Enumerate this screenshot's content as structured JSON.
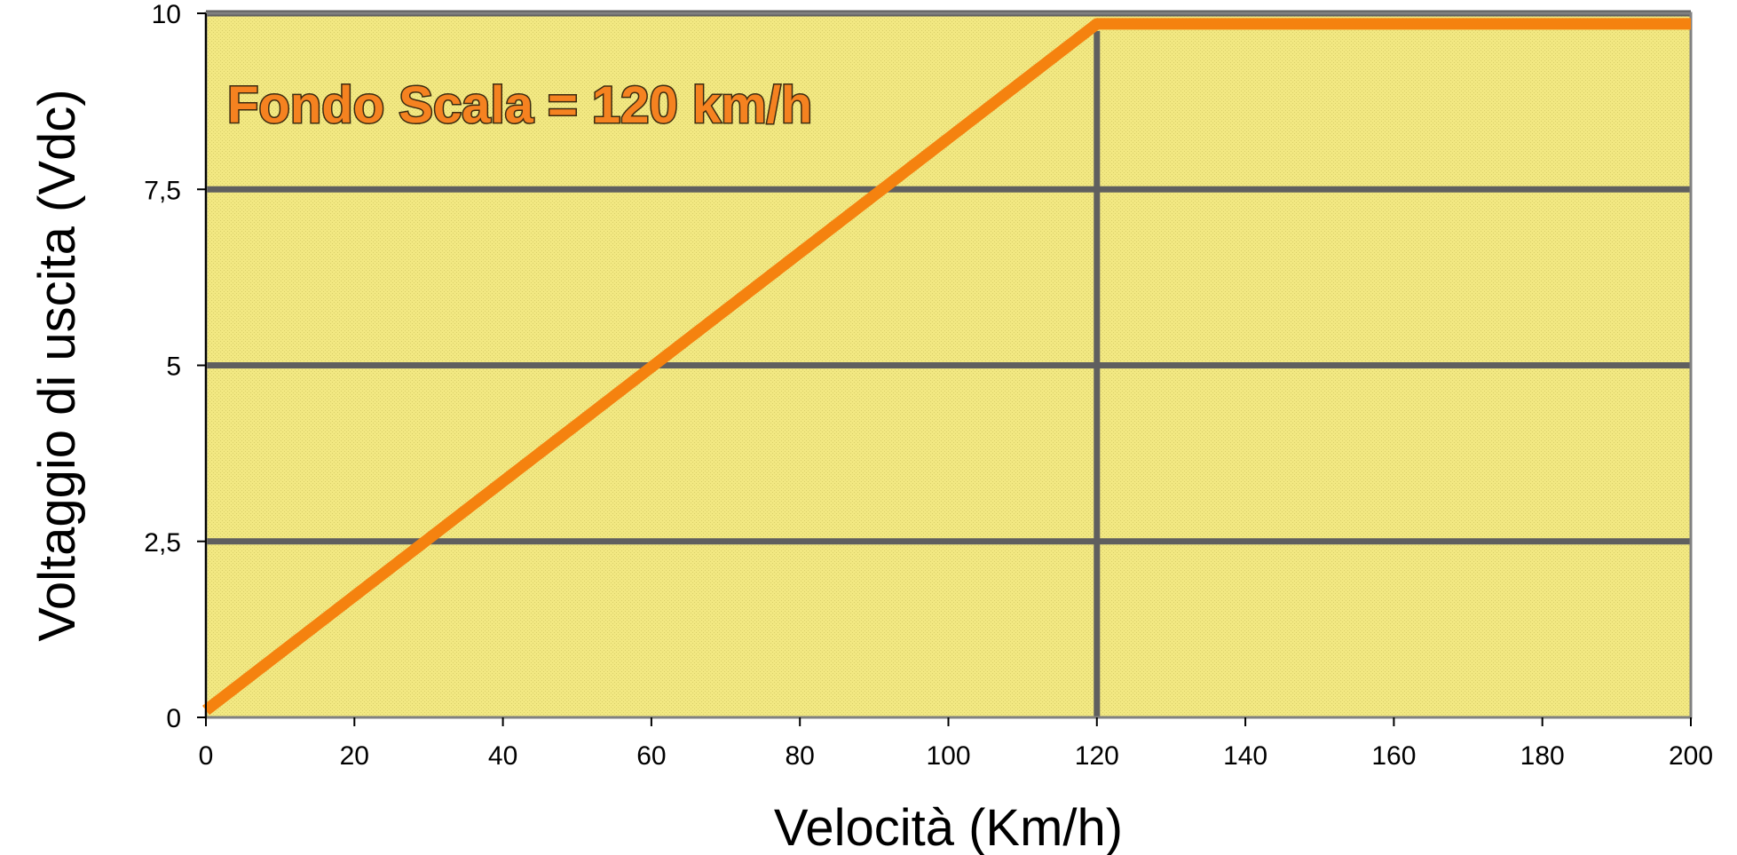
{
  "chart_data": {
    "type": "line",
    "title": "",
    "xlabel": "Velocità (Km/h)",
    "ylabel": "Voltaggio di uscita (Vdc)",
    "xlim": [
      0,
      200
    ],
    "ylim": [
      0,
      10
    ],
    "x_ticks": [
      0,
      20,
      40,
      60,
      80,
      100,
      120,
      140,
      160,
      180,
      200
    ],
    "y_ticks": [
      0,
      2.5,
      5,
      7.5,
      10
    ],
    "x_tick_labels": [
      "0",
      "20",
      "40",
      "60",
      "80",
      "100",
      "120",
      "140",
      "160",
      "180",
      "200"
    ],
    "y_tick_labels": [
      "0",
      "2,5",
      "5",
      "7,5",
      "10"
    ],
    "horizontal_grid": true,
    "vertical_marker_x": 120,
    "background_color": "#f2e882",
    "grid_color": "#5f5f5f",
    "series": [
      {
        "color": "#f5820f",
        "x": [
          0,
          120,
          200
        ],
        "y": [
          0.1,
          9.85,
          9.85
        ]
      }
    ],
    "annotations": [
      {
        "text": "Fondo Scala = 120 km/h",
        "color": "#f58220"
      }
    ]
  }
}
